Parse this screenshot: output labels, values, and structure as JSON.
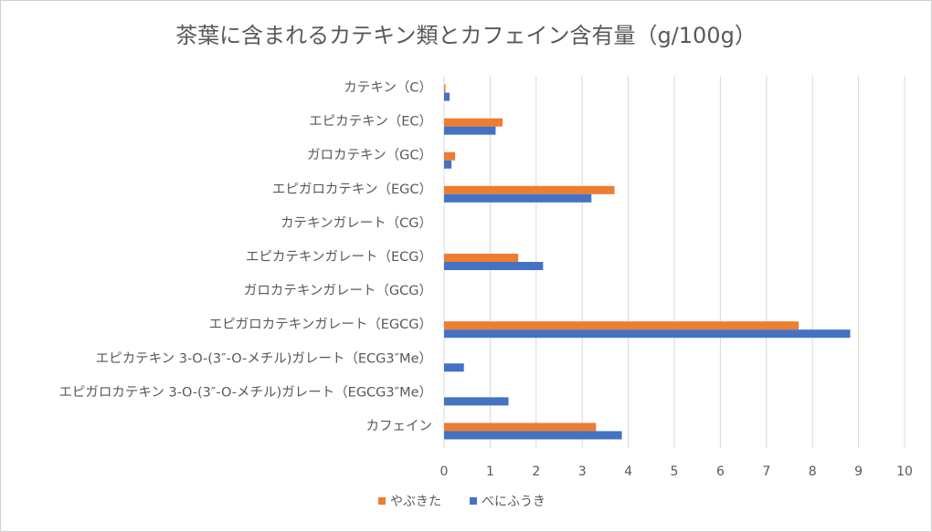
{
  "chart_data": {
    "type": "bar",
    "orientation": "horizontal",
    "title": "茶葉に含まれるカテキン類とカフェイン含有量（g/100g）",
    "xlabel": "",
    "ylabel": "",
    "xlim": [
      0,
      10
    ],
    "xticks": [
      "0",
      "1",
      "2",
      "3",
      "4",
      "5",
      "6",
      "7",
      "8",
      "9",
      "10"
    ],
    "grid": true,
    "legend_position": "bottom",
    "categories": [
      "カテキン（C）",
      "エピカテキン（EC）",
      "ガロカテキン（GC）",
      "エピガロカテキン（EGC）",
      "カテキンガレート（CG）",
      "エピカテキンガレート（ECG）",
      "ガロカテキンガレート（GCG）",
      "エピガロカテキンガレート（EGCG）",
      "エピカテキン 3-O-(3″-O-メチル)ガレート（ECG3″Me）",
      "エピガロカテキン 3-O-(3″-O-メチル)ガレート（EGCG3″Me）",
      "カフェイン"
    ],
    "series": [
      {
        "name": "やぶきた",
        "color": "#ED7D31",
        "values": [
          0.03,
          1.27,
          0.24,
          3.7,
          0,
          1.61,
          0,
          7.7,
          0,
          0,
          3.3
        ]
      },
      {
        "name": "べにふうき",
        "color": "#4472C4",
        "values": [
          0.12,
          1.12,
          0.16,
          3.2,
          0,
          2.15,
          0,
          8.82,
          0.43,
          1.4,
          3.86
        ]
      }
    ]
  }
}
